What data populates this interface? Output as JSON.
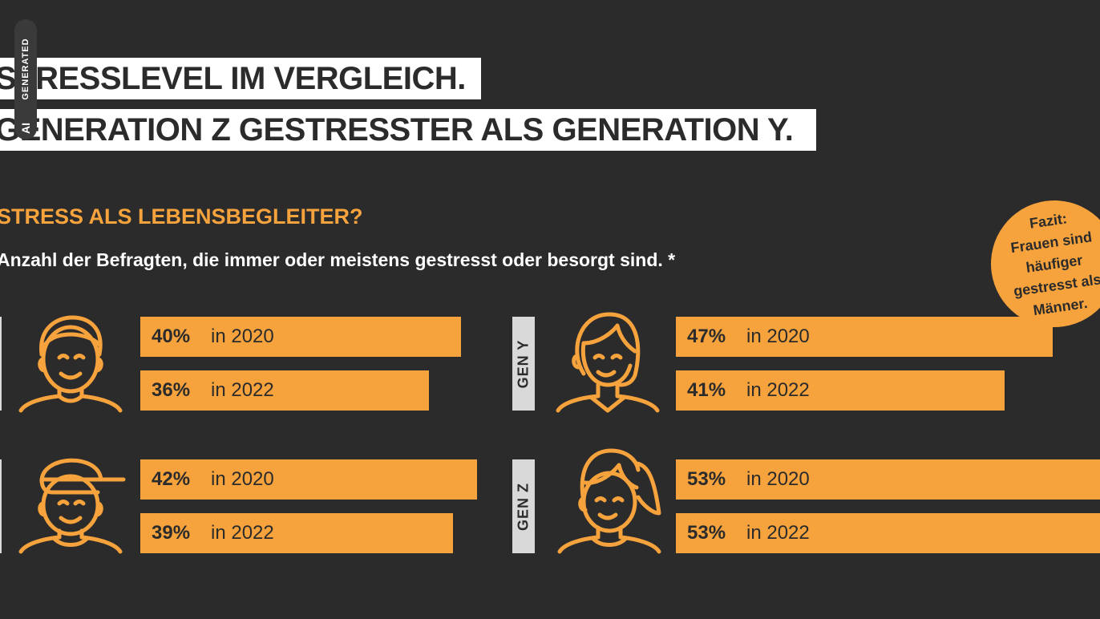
{
  "badge": {
    "top": "GENERATED",
    "bottom": "AI"
  },
  "title": {
    "line1": "STRESSLEVEL IM VERGLEICH.",
    "line2": "GENERATION Z GESTRESSTER ALS GENERATION Y."
  },
  "subtitle": "STRESS ALS LEBENSBEGLEITER?",
  "description": "Anzahl der Befragten, die immer oder meistens gestresst oder besorgt sind. *",
  "fazit": {
    "l1": "Fazit:",
    "l2": "Frauen sind",
    "l3": "häufiger",
    "l4": "gestresst als",
    "l5": "Männer."
  },
  "colors": {
    "background": "#2b2b2b",
    "accent": "#f7a33d",
    "label_bg": "#d9d9d9"
  },
  "chart_data": {
    "type": "bar",
    "orientation": "horizontal",
    "title": "STRESS ALS LEBENSBEGLEITER?",
    "groups": [
      {
        "generation": "",
        "gender": "male",
        "icon": "man-icon",
        "bars": [
          {
            "value": 40,
            "label": "40%",
            "year": "in 2020"
          },
          {
            "value": 36,
            "label": "36%",
            "year": "in 2022"
          }
        ]
      },
      {
        "generation": "GEN Y",
        "gender": "female",
        "icon": "woman-icon",
        "bars": [
          {
            "value": 47,
            "label": "47%",
            "year": "in 2020"
          },
          {
            "value": 41,
            "label": "41%",
            "year": "in 2022"
          }
        ]
      },
      {
        "generation": "",
        "gender": "male",
        "icon": "boy-cap-icon",
        "bars": [
          {
            "value": 42,
            "label": "42%",
            "year": "in 2020"
          },
          {
            "value": 39,
            "label": "39%",
            "year": "in 2022"
          }
        ]
      },
      {
        "generation": "GEN Z",
        "gender": "female",
        "icon": "girl-ponytail-icon",
        "bars": [
          {
            "value": 53,
            "label": "53%",
            "year": "in 2020"
          },
          {
            "value": 53,
            "label": "53%",
            "year": "in 2022"
          }
        ]
      }
    ]
  }
}
